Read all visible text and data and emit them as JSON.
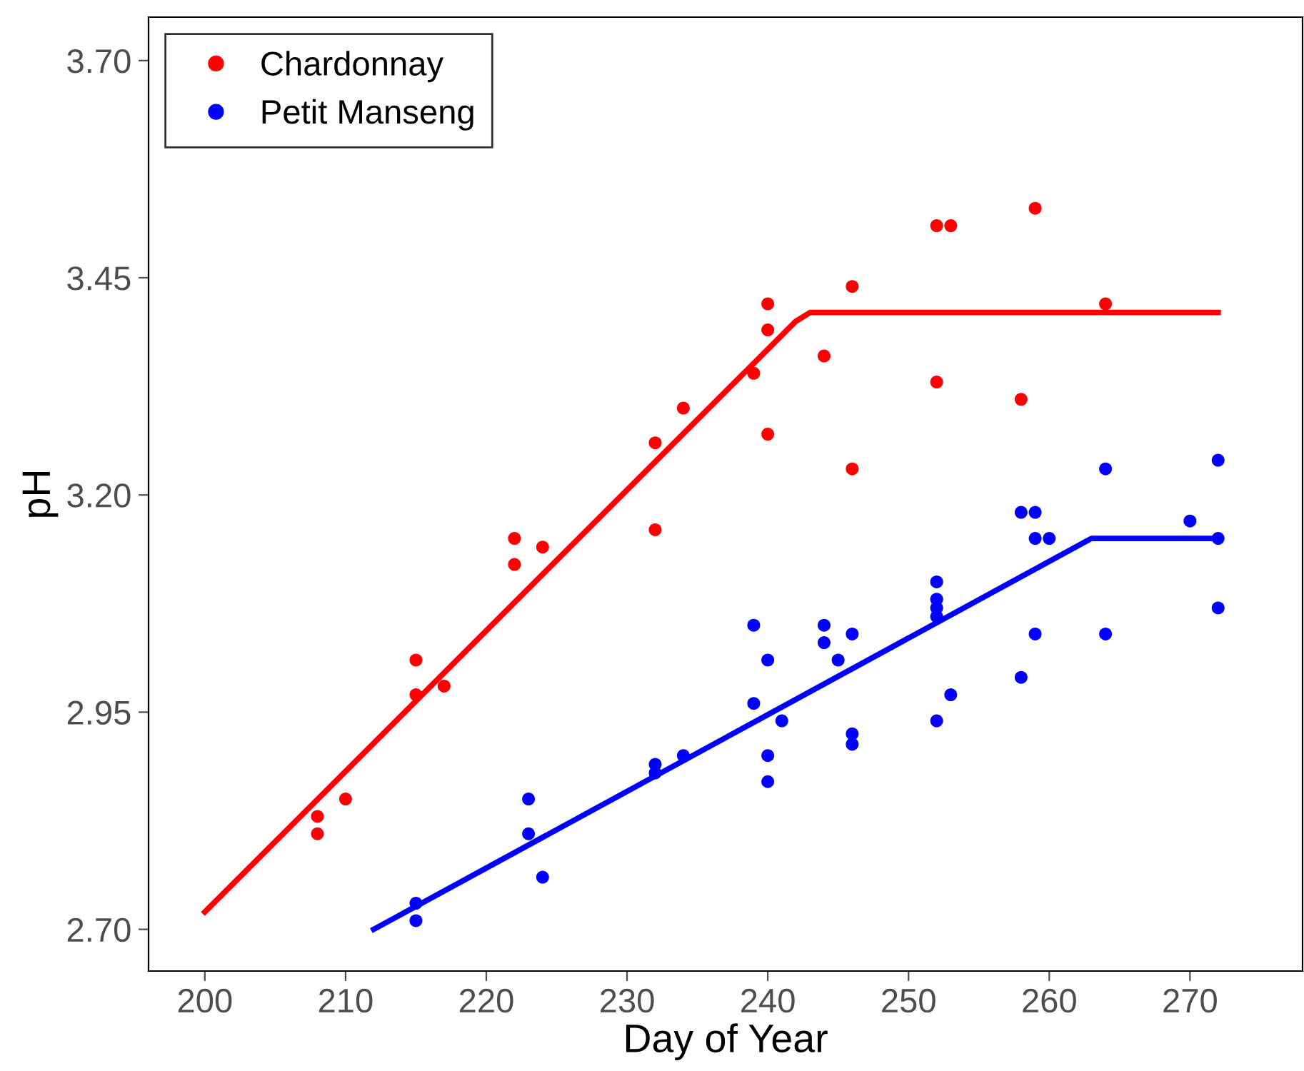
{
  "chart_data": {
    "type": "scatter",
    "xlabel": "Day of Year",
    "ylabel": "pH",
    "xlim": [
      196,
      278
    ],
    "xticks": [
      200,
      210,
      220,
      230,
      240,
      250,
      260,
      270
    ],
    "ylim": [
      2.652,
      3.75
    ],
    "yticks": [
      {
        "value": 2.7,
        "label": "2.70"
      },
      {
        "value": 2.95,
        "label": "2.95"
      },
      {
        "value": 3.2,
        "label": "3.20"
      },
      {
        "value": 3.45,
        "label": "3.45"
      },
      {
        "value": 3.7,
        "label": "3.70"
      }
    ],
    "grid": false,
    "legend": "top left",
    "series": [
      {
        "name": "Chardonnay",
        "color": "#ff0000",
        "marker": "circle",
        "x": [
          208,
          208,
          210,
          215,
          215,
          217,
          222,
          222,
          224,
          232,
          232,
          234,
          239,
          240,
          240,
          240,
          244,
          246,
          246,
          252,
          252,
          253,
          258,
          259,
          264
        ],
        "values": [
          2.83,
          2.81,
          2.85,
          3.01,
          2.97,
          2.98,
          3.15,
          3.12,
          3.14,
          3.26,
          3.16,
          3.3,
          3.34,
          3.42,
          3.39,
          3.27,
          3.36,
          3.44,
          3.23,
          3.51,
          3.33,
          3.51,
          3.31,
          3.53,
          3.42
        ]
      },
      {
        "name": "Petit Manseng",
        "color": "#0000ff",
        "marker": "circle",
        "x": [
          215,
          215,
          223,
          223,
          224,
          232,
          232,
          234,
          239,
          239,
          240,
          240,
          240,
          241,
          244,
          244,
          245,
          246,
          246,
          246,
          252,
          252,
          252,
          252,
          252,
          253,
          258,
          258,
          259,
          259,
          259,
          260,
          264,
          264,
          270,
          272,
          272,
          272
        ],
        "values": [
          2.73,
          2.71,
          2.85,
          2.81,
          2.76,
          2.89,
          2.88,
          2.9,
          3.05,
          2.96,
          3.01,
          2.9,
          2.87,
          2.94,
          3.05,
          3.03,
          3.01,
          3.04,
          2.925,
          2.913,
          3.1,
          3.08,
          3.07,
          3.06,
          2.94,
          2.97,
          3.18,
          2.99,
          3.18,
          3.15,
          3.04,
          3.15,
          3.23,
          3.04,
          3.17,
          3.24,
          3.15,
          3.07
        ]
      },
      {
        "color": "#ff0000",
        "type": "line",
        "line_style": "solid",
        "x": [
          200,
          242,
          243,
          272
        ],
        "values": [
          2.72,
          3.4,
          3.41,
          3.41
        ]
      },
      {
        "color": "#0000ff",
        "type": "line",
        "line_style": "solid",
        "x": [
          212,
          263,
          272
        ],
        "values": [
          2.7,
          3.15,
          3.15
        ]
      }
    ]
  }
}
